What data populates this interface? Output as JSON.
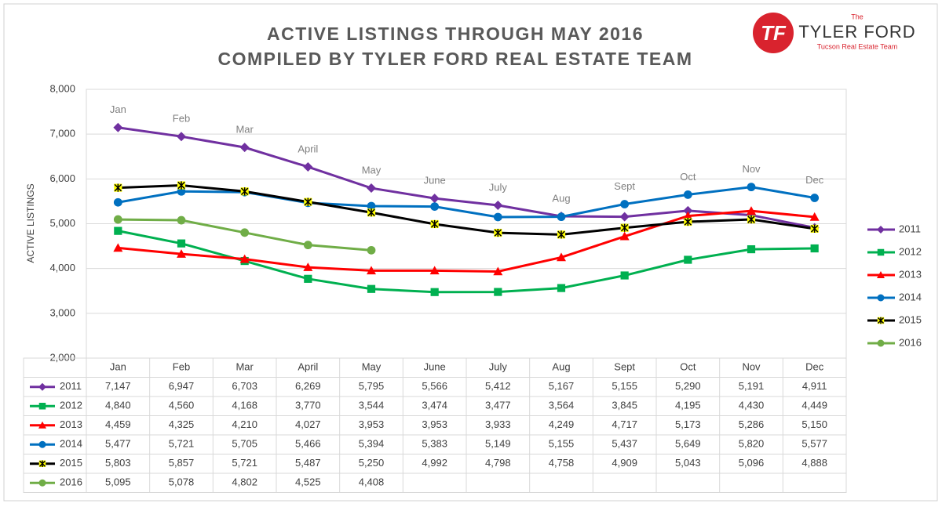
{
  "logo": {
    "mark": "TF",
    "the": "The",
    "name": "TYLER FORD",
    "tagline": "Tucson Real Estate Team"
  },
  "chart_data": {
    "type": "line",
    "title": "ACTIVE LISTINGS THROUGH MAY 2016",
    "subtitle": "COMPILED BY TYLER FORD REAL ESTATE TEAM",
    "y_label": "ACTIVE LISTINGS",
    "categories": [
      "Jan",
      "Feb",
      "Mar",
      "April",
      "May",
      "June",
      "July",
      "Aug",
      "Sept",
      "Oct",
      "Nov",
      "Dec"
    ],
    "ylim": [
      2000,
      8000
    ],
    "yticks": [
      {
        "value": 2000,
        "label": "2,000"
      },
      {
        "value": 3000,
        "label": "3,000"
      },
      {
        "value": 4000,
        "label": "4,000"
      },
      {
        "value": 5000,
        "label": "5,000"
      },
      {
        "value": 6000,
        "label": "6,000"
      },
      {
        "value": 7000,
        "label": "7,000"
      },
      {
        "value": 8000,
        "label": "8,000"
      }
    ],
    "grid": true,
    "legend": "right",
    "series": [
      {
        "name": "2011",
        "color": "#7030a0",
        "marker": "diamond",
        "values": [
          7147,
          6947,
          6703,
          6269,
          5795,
          5566,
          5412,
          5167,
          5155,
          5290,
          5191,
          4911
        ],
        "value_labels": [
          "7,147",
          "6,947",
          "6,703",
          "6,269",
          "5,795",
          "5,566",
          "5,412",
          "5,167",
          "5,155",
          "5,290",
          "5,191",
          "4,911"
        ]
      },
      {
        "name": "2012",
        "color": "#00b050",
        "marker": "square",
        "values": [
          4840,
          4560,
          4168,
          3770,
          3544,
          3474,
          3477,
          3564,
          3845,
          4195,
          4430,
          4449
        ],
        "value_labels": [
          "4,840",
          "4,560",
          "4,168",
          "3,770",
          "3,544",
          "3,474",
          "3,477",
          "3,564",
          "3,845",
          "4,195",
          "4,430",
          "4,449"
        ]
      },
      {
        "name": "2013",
        "color": "#ff0000",
        "marker": "triangle",
        "values": [
          4459,
          4325,
          4210,
          4027,
          3953,
          3953,
          3933,
          4249,
          4717,
          5173,
          5286,
          5150
        ],
        "value_labels": [
          "4,459",
          "4,325",
          "4,210",
          "4,027",
          "3,953",
          "3,953",
          "3,933",
          "4,249",
          "4,717",
          "5,173",
          "5,286",
          "5,150"
        ]
      },
      {
        "name": "2014",
        "color": "#0070c0",
        "marker": "circle",
        "values": [
          5477,
          5721,
          5705,
          5466,
          5394,
          5383,
          5149,
          5155,
          5437,
          5649,
          5820,
          5577
        ],
        "value_labels": [
          "5,477",
          "5,721",
          "5,705",
          "5,466",
          "5,394",
          "5,383",
          "5,149",
          "5,155",
          "5,437",
          "5,649",
          "5,820",
          "5,577"
        ]
      },
      {
        "name": "2015",
        "color": "#000000",
        "marker": "star",
        "values": [
          5803,
          5857,
          5721,
          5487,
          5250,
          4992,
          4798,
          4758,
          4909,
          5043,
          5096,
          4888
        ],
        "value_labels": [
          "5,803",
          "5,857",
          "5,721",
          "5,487",
          "5,250",
          "4,992",
          "4,798",
          "4,758",
          "4,909",
          "5,043",
          "5,096",
          "4,888"
        ]
      },
      {
        "name": "2016",
        "color": "#70ad47",
        "marker": "circle",
        "values": [
          5095,
          5078,
          4802,
          4525,
          4408,
          null,
          null,
          null,
          null,
          null,
          null,
          null
        ],
        "value_labels": [
          "5,095",
          "5,078",
          "4,802",
          "4,525",
          "4,408",
          null,
          null,
          null,
          null,
          null,
          null,
          null
        ]
      }
    ]
  }
}
